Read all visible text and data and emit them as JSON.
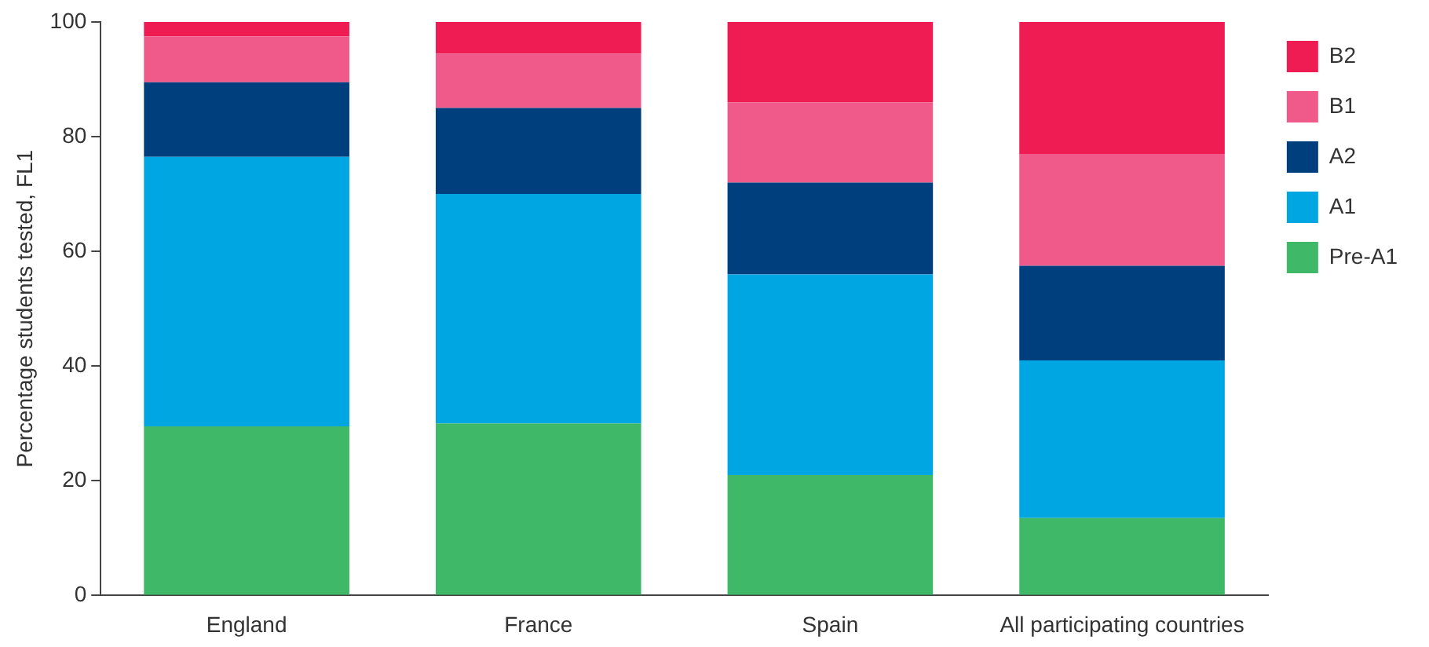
{
  "chart_data": {
    "type": "bar",
    "stacked": true,
    "ylabel": "Percentage students tested, FL1",
    "categories": [
      "England",
      "France",
      "Spain",
      "All participating countries"
    ],
    "series": [
      {
        "name": "Pre-A1",
        "color": "#3fb868",
        "values": [
          29.5,
          30,
          21,
          13.5
        ]
      },
      {
        "name": "A1",
        "color": "#00a6e2",
        "values": [
          47,
          40,
          35,
          27.5
        ]
      },
      {
        "name": "A2",
        "color": "#003f7d",
        "values": [
          13,
          15,
          16,
          16.5
        ]
      },
      {
        "name": "B1",
        "color": "#ef5a8a",
        "values": [
          8,
          9.5,
          14,
          19.5
        ]
      },
      {
        "name": "B2",
        "color": "#ef1c54",
        "values": [
          2.5,
          5.5,
          14,
          23
        ]
      }
    ],
    "ylim": [
      0,
      100
    ],
    "yticks": [
      0,
      20,
      40,
      60,
      80,
      100
    ],
    "grid": false,
    "legend": "right"
  }
}
